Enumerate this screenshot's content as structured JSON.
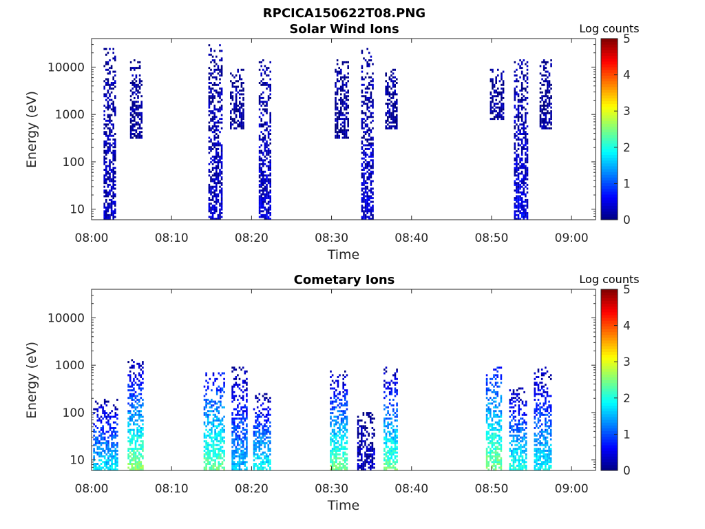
{
  "figure": {
    "suptitle": "RPCICA150622T08.PNG"
  },
  "colormap": {
    "stops": [
      "#00007f",
      "#0000ff",
      "#007fff",
      "#00ffff",
      "#7fff7f",
      "#ffff00",
      "#ff7f00",
      "#ff0000",
      "#7f0000"
    ]
  },
  "chart_data": [
    {
      "type": "heatmap",
      "title": "Solar Wind Ions",
      "xlabel": "Time",
      "ylabel": "Energy (eV)",
      "xticks": [
        "08:00",
        "08:10",
        "08:20",
        "08:30",
        "08:40",
        "08:50",
        "09:00"
      ],
      "xlim_minutes": [
        0,
        63
      ],
      "yscale": "log",
      "ylim": [
        6,
        40000
      ],
      "yticks": [
        "10",
        "100",
        "1000",
        "10000"
      ],
      "colorbar": {
        "label": "Log counts",
        "min": 0,
        "max": 5,
        "ticks": [
          "0",
          "1",
          "2",
          "3",
          "4",
          "5"
        ]
      },
      "bursts": [
        {
          "t0": 1.5,
          "t1": 3.0,
          "emin": 6,
          "emax": 25000,
          "level_low": 0.3,
          "level_high": 0.1
        },
        {
          "t0": 4.8,
          "t1": 6.3,
          "emin": 300,
          "emax": 15000,
          "level_low": 0.1,
          "level_high": 0.1
        },
        {
          "t0": 14.6,
          "t1": 16.2,
          "emin": 6,
          "emax": 30000,
          "level_low": 0.3,
          "level_high": 0.1
        },
        {
          "t0": 17.3,
          "t1": 19.0,
          "emin": 500,
          "emax": 9000,
          "level_low": 0.1,
          "level_high": 0.1
        },
        {
          "t0": 20.9,
          "t1": 22.4,
          "emin": 6,
          "emax": 14000,
          "level_low": 0.4,
          "level_high": 0.1
        },
        {
          "t0": 30.4,
          "t1": 32.0,
          "emin": 300,
          "emax": 15000,
          "level_low": 0.1,
          "level_high": 0.1
        },
        {
          "t0": 33.7,
          "t1": 35.2,
          "emin": 6,
          "emax": 25000,
          "level_low": 0.4,
          "level_high": 0.1
        },
        {
          "t0": 36.7,
          "t1": 38.2,
          "emin": 500,
          "emax": 9000,
          "level_low": 0.1,
          "level_high": 0.1
        },
        {
          "t0": 49.8,
          "t1": 51.4,
          "emin": 800,
          "emax": 9000,
          "level_low": 0.1,
          "level_high": 0.1
        },
        {
          "t0": 52.8,
          "t1": 54.4,
          "emin": 6,
          "emax": 15000,
          "level_low": 0.5,
          "level_high": 0.1
        },
        {
          "t0": 56.0,
          "t1": 57.4,
          "emin": 500,
          "emax": 14000,
          "level_low": 0.1,
          "level_high": 0.1
        }
      ]
    },
    {
      "type": "heatmap",
      "title": "Cometary Ions",
      "xlabel": "Time",
      "ylabel": "Energy (eV)",
      "xticks": [
        "08:00",
        "08:10",
        "08:20",
        "08:30",
        "08:40",
        "08:50",
        "09:00"
      ],
      "xlim_minutes": [
        0,
        63
      ],
      "yscale": "log",
      "ylim": [
        6,
        40000
      ],
      "yticks": [
        "10",
        "100",
        "1000",
        "10000"
      ],
      "colorbar": {
        "label": "Log counts",
        "min": 0,
        "max": 5,
        "ticks": [
          "0",
          "1",
          "2",
          "3",
          "4",
          "5"
        ]
      },
      "bursts": [
        {
          "t0": 0.2,
          "t1": 3.2,
          "emin": 6,
          "emax": 200,
          "level_low": 1.8,
          "level_high": 0.1
        },
        {
          "t0": 4.5,
          "t1": 6.3,
          "emin": 6,
          "emax": 1400,
          "level_low": 2.6,
          "level_high": 0.1
        },
        {
          "t0": 14.0,
          "t1": 16.5,
          "emin": 6,
          "emax": 700,
          "level_low": 2.4,
          "level_high": 0.6
        },
        {
          "t0": 17.5,
          "t1": 19.3,
          "emin": 6,
          "emax": 900,
          "level_low": 1.6,
          "level_high": 0.1
        },
        {
          "t0": 20.2,
          "t1": 22.3,
          "emin": 6,
          "emax": 250,
          "level_low": 2.0,
          "level_high": 0.1
        },
        {
          "t0": 29.8,
          "t1": 32.0,
          "emin": 6,
          "emax": 800,
          "level_low": 2.5,
          "level_high": 0.1
        },
        {
          "t0": 33.2,
          "t1": 35.3,
          "emin": 6,
          "emax": 100,
          "level_low": 0.3,
          "level_high": 0.1
        },
        {
          "t0": 36.5,
          "t1": 38.2,
          "emin": 6,
          "emax": 900,
          "level_low": 2.4,
          "level_high": 0.1
        },
        {
          "t0": 49.3,
          "t1": 51.3,
          "emin": 6,
          "emax": 900,
          "level_low": 2.5,
          "level_high": 0.7
        },
        {
          "t0": 52.2,
          "t1": 54.3,
          "emin": 6,
          "emax": 350,
          "level_low": 2.1,
          "level_high": 0.1
        },
        {
          "t0": 55.3,
          "t1": 57.4,
          "emin": 6,
          "emax": 900,
          "level_low": 1.9,
          "level_high": 0.1
        }
      ]
    }
  ]
}
